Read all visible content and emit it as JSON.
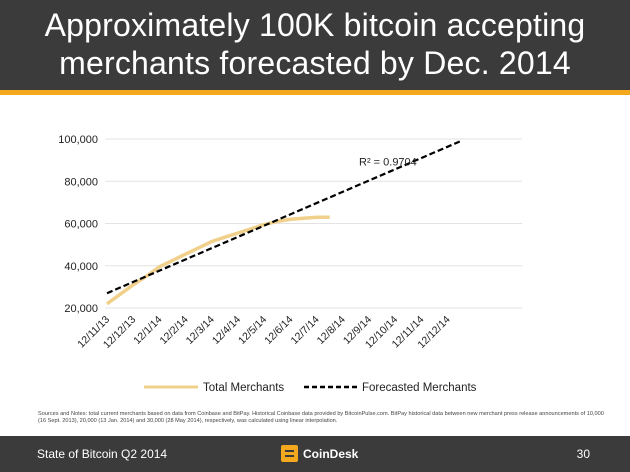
{
  "header": {
    "title_line1": "Approximately 100K bitcoin accepting",
    "title_line2": "merchants forecasted by Dec. 2014"
  },
  "chart_data": {
    "type": "line",
    "categories": [
      "12/11/13",
      "12/12/13",
      "12/1/14",
      "12/2/14",
      "12/3/14",
      "12/4/14",
      "12/5/14",
      "12/6/14",
      "12/7/14",
      "12/8/14",
      "12/9/14",
      "12/10/14",
      "12/11/14",
      "12/12/14"
    ],
    "ylim": [
      20000,
      100000
    ],
    "yticks": [
      20000,
      40000,
      60000,
      80000,
      100000
    ],
    "ytick_labels": [
      "20,000",
      "40,000",
      "60,000",
      "80,000",
      "100,000"
    ],
    "series": [
      {
        "name": "Total Merchants",
        "color": "#f0d08a",
        "x": [
          0,
          0.5,
          1,
          1.5,
          2,
          2.5,
          3,
          3.5,
          4,
          4.5,
          5,
          5.5,
          6,
          6.5,
          7,
          7.5,
          8,
          8.5
        ],
        "values": [
          22000,
          26500,
          31000,
          35000,
          39500,
          42500,
          45500,
          48500,
          51500,
          53500,
          55500,
          57500,
          59500,
          61000,
          62000,
          62500,
          63000,
          63000
        ]
      },
      {
        "name": "Forecasted Merchants",
        "color": "#000000",
        "dashed": true,
        "x": [
          0,
          13.5
        ],
        "values": [
          27000,
          99000
        ]
      }
    ],
    "annotation": "R² = 0.9704",
    "annotation_x": 10,
    "annotation_y": 87500
  },
  "notes": "Sources and Notes: total current merchants based on data from Coinbase and BitPay. Historical Coinbase data provided by BitcoinPulse.com. BitPay historical data between new merchant press release announcements of 10,000 (16 Sept. 2013), 20,000 (13 Jan. 2014) and 30,000 (28 May 2014), respectively, was calculated using linear interpolation.",
  "footer": {
    "left": "State of Bitcoin Q2 2014",
    "brand": "CoinDesk",
    "page": "30"
  }
}
